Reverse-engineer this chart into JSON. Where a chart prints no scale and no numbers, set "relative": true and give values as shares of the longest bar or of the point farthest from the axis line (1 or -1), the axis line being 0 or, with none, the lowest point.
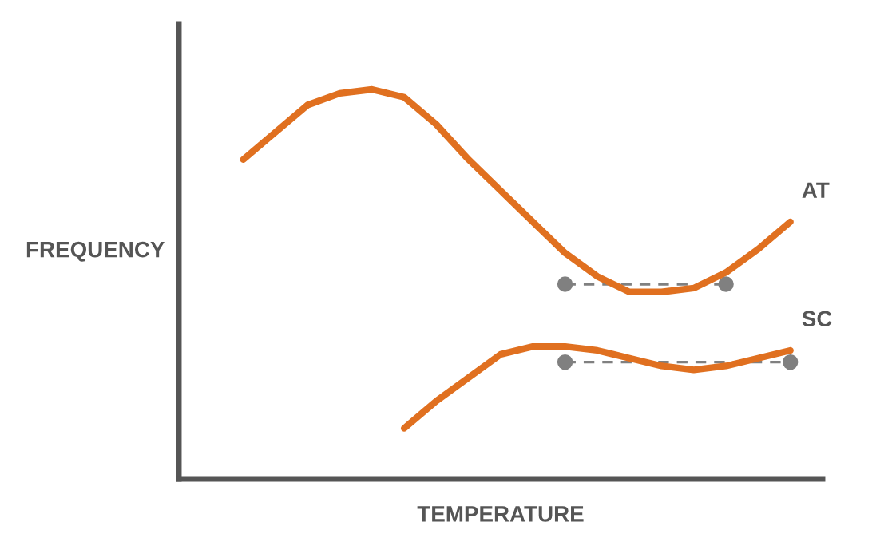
{
  "chart_data": {
    "type": "line",
    "relative": true,
    "xlabel": "TEMPERATURE",
    "ylabel": "FREQUENCY",
    "categories": [
      null,
      null,
      null,
      null,
      null,
      null,
      null,
      null,
      null,
      null,
      null,
      null,
      null,
      null,
      null,
      null,
      null,
      null,
      null,
      null,
      null
    ],
    "series": [
      {
        "name": "AT",
        "color": "#e07020",
        "values": [
          null,
          null,
          0.82,
          0.89,
          0.96,
          0.99,
          1,
          0.98,
          0.91,
          0.82,
          0.74,
          0.66,
          0.58,
          0.52,
          0.48,
          0.48,
          0.49,
          0.53,
          0.59,
          0.66,
          null
        ]
      },
      {
        "name": "SC",
        "color": "#e07020",
        "values": [
          null,
          null,
          null,
          null,
          null,
          null,
          null,
          0.13,
          0.2,
          0.26,
          0.32,
          0.34,
          0.34,
          0.33,
          0.31,
          0.29,
          0.28,
          0.29,
          0.31,
          0.33,
          null
        ]
      },
      {
        "color": "#808080",
        "line_style": "dashed",
        "marker": "circle",
        "values": [
          null,
          null,
          null,
          null,
          null,
          null,
          null,
          null,
          null,
          null,
          null,
          null,
          0.5,
          null,
          null,
          null,
          null,
          0.5,
          null,
          null,
          null
        ]
      },
      {
        "color": "#808080",
        "line_style": "dashed",
        "marker": "circle",
        "values": [
          null,
          null,
          null,
          null,
          null,
          null,
          null,
          null,
          null,
          null,
          null,
          null,
          0.3,
          null,
          null,
          null,
          null,
          null,
          null,
          0.3,
          null
        ]
      }
    ],
    "legend": false
  }
}
